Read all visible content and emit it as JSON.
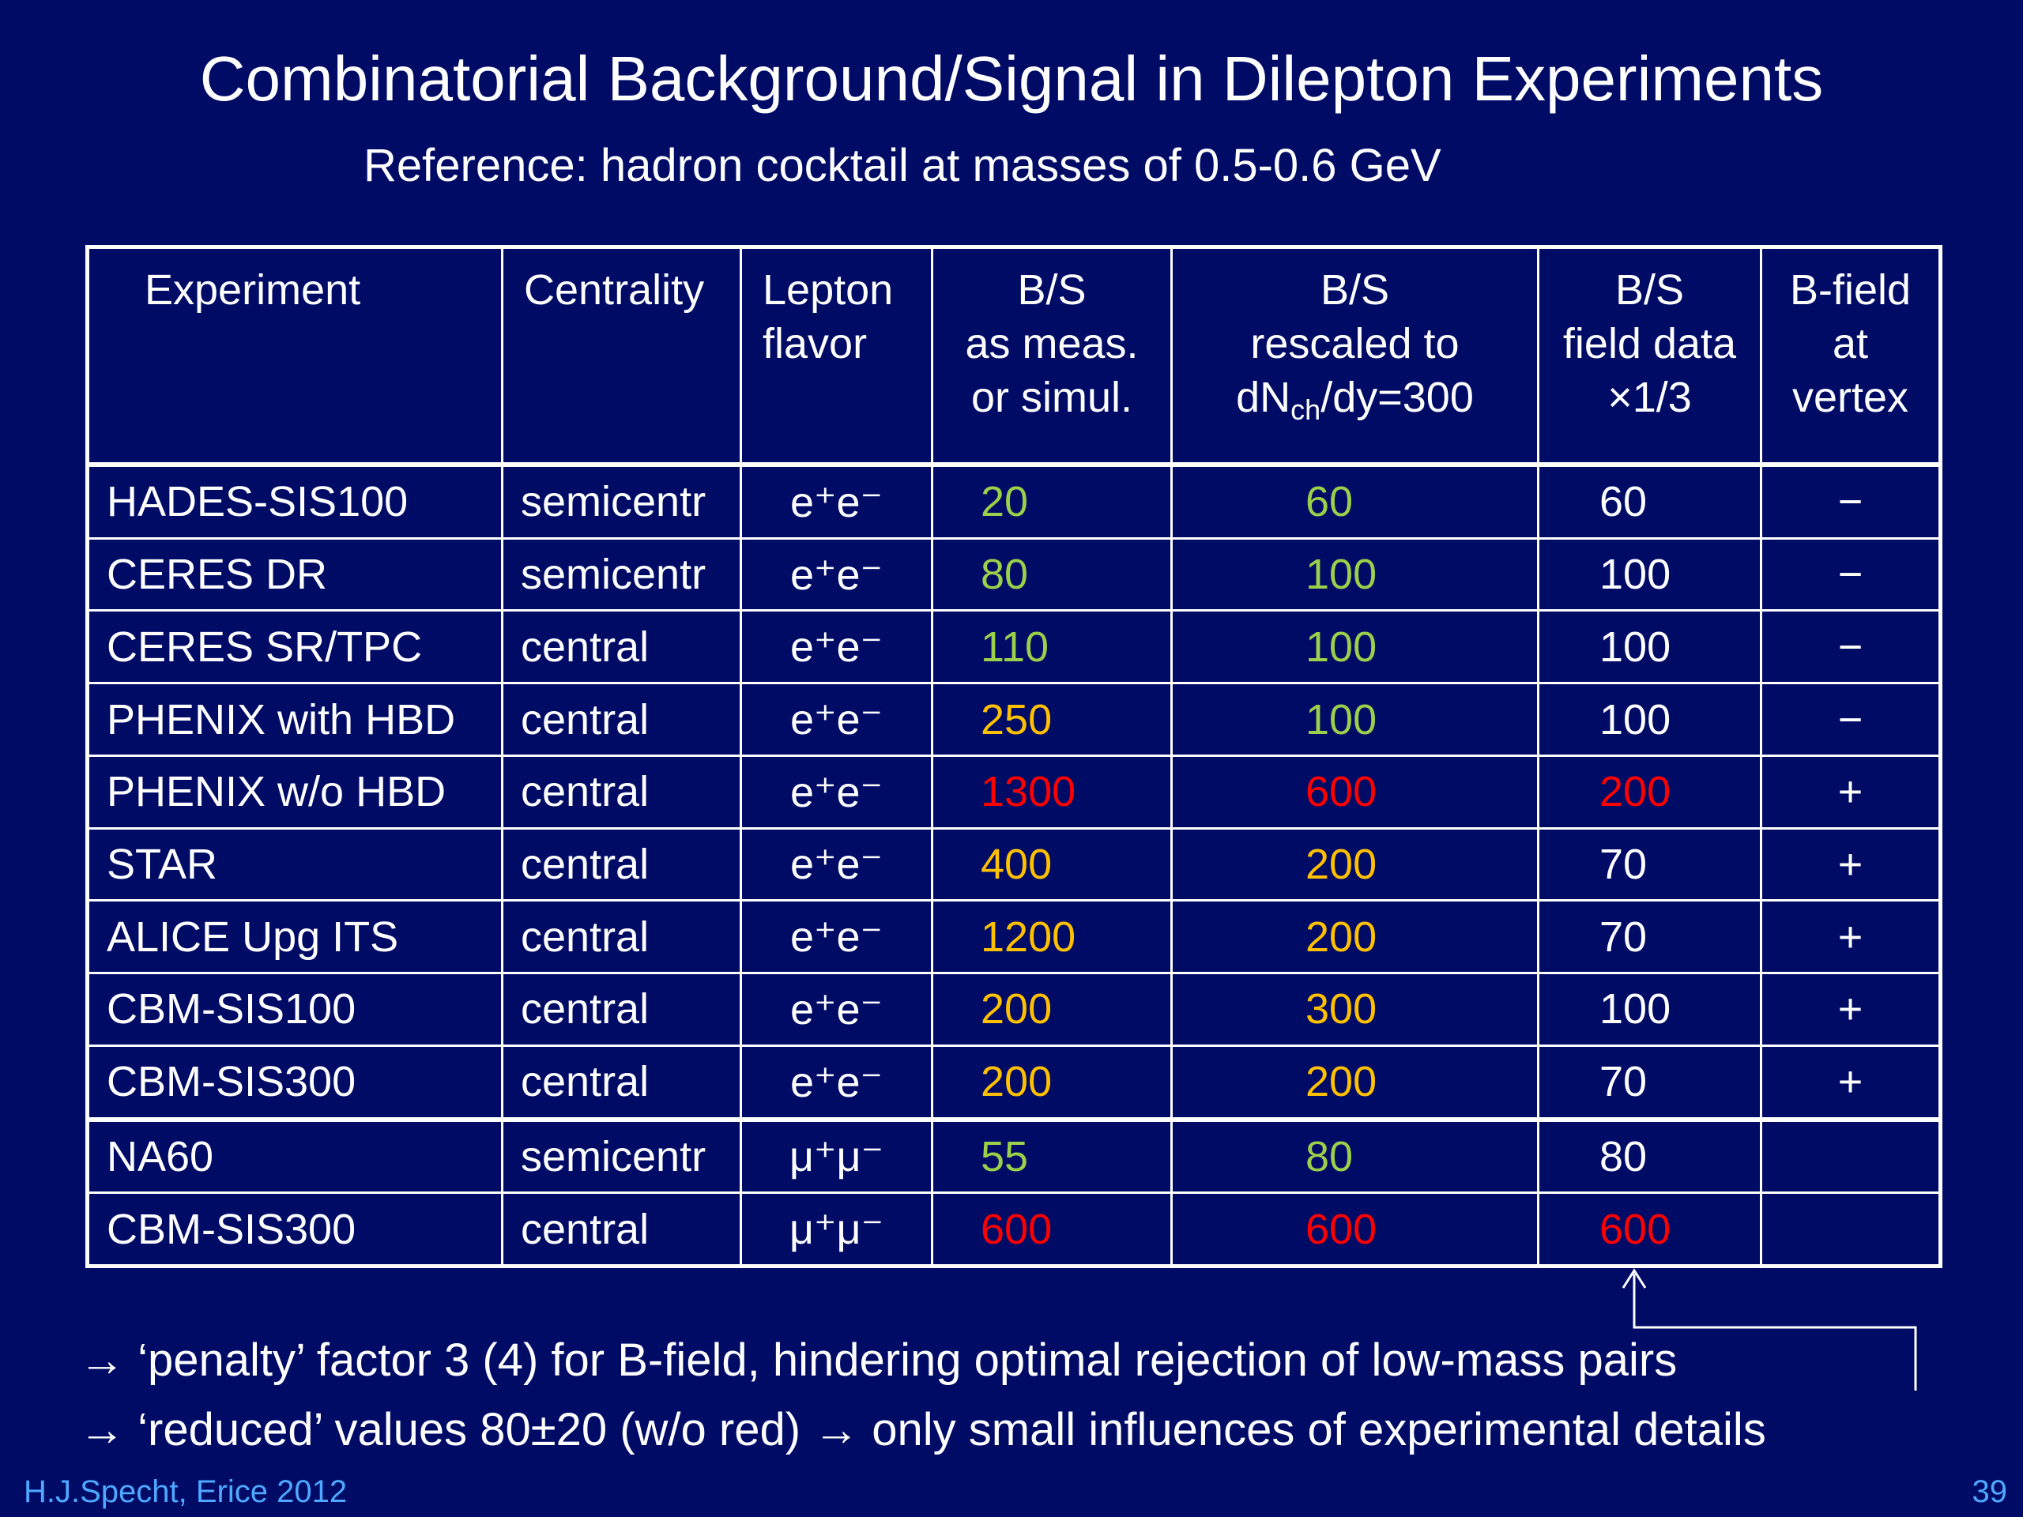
{
  "title": "Combinatorial Background/Signal in Dilepton Experiments",
  "subtitle": "Reference: hadron cocktail at masses of 0.5-0.6 GeV",
  "colors": {
    "background": "#000b66",
    "green": "#9bd04a",
    "orange": "#ffc000",
    "red": "#ff0000",
    "white": "#ffffff",
    "footer": "#4fa8ff"
  },
  "table": {
    "headers": {
      "experiment": [
        "Experiment"
      ],
      "centrality": [
        "Centrality"
      ],
      "lepton": [
        "Lepton",
        "flavor"
      ],
      "meas": [
        "B/S",
        "as meas.",
        "or simul."
      ],
      "rescaled": {
        "line1": "B/S",
        "line2": "rescaled  to",
        "line3_pre": "dN",
        "line3_sub": "ch",
        "line3_post": "/dy=300"
      },
      "field": [
        "B/S",
        "field data",
        "×1/3"
      ],
      "bfield": [
        "B-field",
        "at",
        "vertex"
      ]
    },
    "rows": [
      {
        "experiment": "HADES-SIS100",
        "centrality": "semicentr",
        "lepton": "e⁺e⁻",
        "meas": "20",
        "meas_color": "green",
        "rescaled": "60",
        "rescaled_color": "green",
        "field": "60",
        "field_color": "white",
        "bfield": "−"
      },
      {
        "experiment": "CERES DR",
        "centrality": "semicentr",
        "lepton": "e⁺e⁻",
        "meas": "80",
        "meas_color": "green",
        "rescaled": "100",
        "rescaled_color": "green",
        "field": "100",
        "field_color": "white",
        "bfield": "−"
      },
      {
        "experiment": "CERES SR/TPC",
        "centrality": "central",
        "lepton": "e⁺e⁻",
        "meas": "110",
        "meas_color": "green",
        "rescaled": "100",
        "rescaled_color": "green",
        "field": "100",
        "field_color": "white",
        "bfield": "−"
      },
      {
        "experiment": "PHENIX with HBD",
        "centrality": "central",
        "lepton": "e⁺e⁻",
        "meas": "250",
        "meas_color": "orange",
        "rescaled": "100",
        "rescaled_color": "green",
        "field": "100",
        "field_color": "white",
        "bfield": "−"
      },
      {
        "experiment": "PHENIX  w/o HBD",
        "centrality": "central",
        "lepton": "e⁺e⁻",
        "meas": "1300",
        "meas_color": "red",
        "rescaled": "600",
        "rescaled_color": "red",
        "field": "200",
        "field_color": "red",
        "bfield": "+"
      },
      {
        "experiment": "STAR",
        "centrality": "central",
        "lepton": "e⁺e⁻",
        "meas": "400",
        "meas_color": "orange",
        "rescaled": "200",
        "rescaled_color": "orange",
        "field": "70",
        "field_color": "white",
        "bfield": "+"
      },
      {
        "experiment": "ALICE Upg ITS",
        "centrality": "central",
        "lepton": "e⁺e⁻",
        "meas": "1200",
        "meas_color": "orange",
        "rescaled": "200",
        "rescaled_color": "orange",
        "field": "70",
        "field_color": "white",
        "bfield": "+"
      },
      {
        "experiment": "CBM-SIS100",
        "centrality": "central",
        "lepton": "e⁺e⁻",
        "meas": "200",
        "meas_color": "orange",
        "rescaled": "300",
        "rescaled_color": "orange",
        "field": "100",
        "field_color": "white",
        "bfield": "+"
      },
      {
        "experiment": "CBM-SIS300",
        "centrality": "central",
        "lepton": "e⁺e⁻",
        "meas": "200",
        "meas_color": "orange",
        "rescaled": "200",
        "rescaled_color": "orange",
        "field": "70",
        "field_color": "white",
        "bfield": "+"
      },
      {
        "experiment": "NA60",
        "centrality": "semicentr",
        "lepton": "μ⁺μ⁻",
        "meas": "55",
        "meas_color": "green",
        "rescaled": "80",
        "rescaled_color": "green",
        "field": "80",
        "field_color": "white",
        "bfield": ""
      },
      {
        "experiment": "CBM-SIS300",
        "centrality": "central",
        "lepton": "μ⁺μ⁻",
        "meas": "600",
        "meas_color": "red",
        "rescaled": "600",
        "rescaled_color": "red",
        "field": "600",
        "field_color": "red",
        "bfield": ""
      }
    ]
  },
  "bullets": [
    "→ ‘penalty’ factor 3 (4) for B-field, hindering optimal rejection of low-mass pairs",
    "→ ‘reduced’ values 80±20 (w/o red) → only small influences of experimental details"
  ],
  "footer": {
    "author": "H.J.Specht, Erice 2012",
    "page": "39"
  }
}
